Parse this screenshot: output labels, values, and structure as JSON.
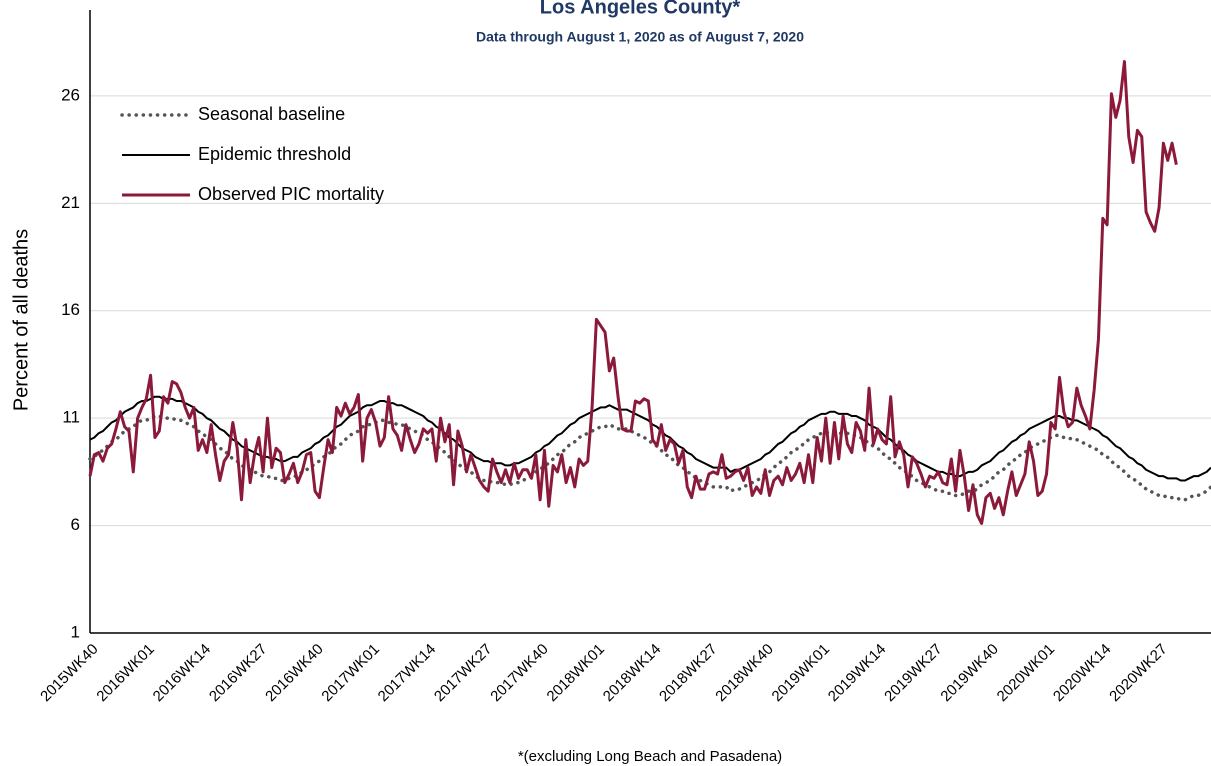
{
  "chart_data": {
    "type": "line",
    "title": "Los Angeles County*",
    "subtitle": "Data through August 1, 2020 as of August 7, 2020",
    "y_label": "Percent of all deaths",
    "footnote": "*(excluding  Long Beach and Pasadena)",
    "ylim": [
      1,
      30
    ],
    "yticks": [
      1,
      6,
      11,
      16,
      21,
      26
    ],
    "grid": true,
    "legend": "top-left",
    "categories": [
      "2015WK40",
      null,
      null,
      null,
      null,
      null,
      null,
      null,
      null,
      null,
      null,
      null,
      null,
      "2016WK01",
      null,
      null,
      null,
      null,
      null,
      null,
      null,
      null,
      null,
      null,
      null,
      null,
      "2016WK14",
      null,
      null,
      null,
      null,
      null,
      null,
      null,
      null,
      null,
      null,
      null,
      null,
      "2016WK27",
      null,
      null,
      null,
      null,
      null,
      null,
      null,
      null,
      null,
      null,
      null,
      null,
      "2016WK40",
      null,
      null,
      null,
      null,
      null,
      null,
      null,
      null,
      null,
      null,
      null,
      null,
      "2017WK01",
      null,
      null,
      null,
      null,
      null,
      null,
      null,
      null,
      null,
      null,
      null,
      null,
      "2017WK14",
      null,
      null,
      null,
      null,
      null,
      null,
      null,
      null,
      null,
      null,
      null,
      null,
      "2017WK27",
      null,
      null,
      null,
      null,
      null,
      null,
      null,
      null,
      null,
      null,
      null,
      null,
      "2017WK40",
      null,
      null,
      null,
      null,
      null,
      null,
      null,
      null,
      null,
      null,
      null,
      null,
      "2018WK01",
      null,
      null,
      null,
      null,
      null,
      null,
      null,
      null,
      null,
      null,
      null,
      null,
      "2018WK14",
      null,
      null,
      null,
      null,
      null,
      null,
      null,
      null,
      null,
      null,
      null,
      null,
      "2018WK27",
      null,
      null,
      null,
      null,
      null,
      null,
      null,
      null,
      null,
      null,
      null,
      null,
      "2018WK40",
      null,
      null,
      null,
      null,
      null,
      null,
      null,
      null,
      null,
      null,
      null,
      null,
      "2019WK01",
      null,
      null,
      null,
      null,
      null,
      null,
      null,
      null,
      null,
      null,
      null,
      null,
      "2019WK14",
      null,
      null,
      null,
      null,
      null,
      null,
      null,
      null,
      null,
      null,
      null,
      null,
      "2019WK27",
      null,
      null,
      null,
      null,
      null,
      null,
      null,
      null,
      null,
      null,
      null,
      null,
      "2019WK40",
      null,
      null,
      null,
      null,
      null,
      null,
      null,
      null,
      null,
      null,
      null,
      null,
      "2020WK01",
      null,
      null,
      null,
      null,
      null,
      null,
      null,
      null,
      null,
      null,
      null,
      null,
      "2020WK14",
      null,
      null,
      null,
      null,
      null,
      null,
      null,
      null,
      null,
      null,
      null,
      null,
      "2020WK27",
      null,
      null,
      null,
      null,
      null,
      null,
      null,
      null,
      null,
      null,
      null,
      null
    ],
    "series": [
      {
        "name": "Seasonal baseline",
        "color": "#555555",
        "line_style": "dotted",
        "values": [
          9.1,
          9.2,
          9.4,
          9.5,
          9.7,
          9.9,
          10.0,
          10.2,
          10.4,
          10.5,
          10.6,
          10.8,
          10.9,
          10.9,
          11.0,
          11.1,
          11.1,
          11.0,
          11.0,
          11.0,
          10.9,
          10.9,
          10.8,
          10.7,
          10.6,
          10.4,
          10.3,
          10.1,
          10.0,
          9.8,
          9.6,
          9.5,
          9.3,
          9.1,
          9.0,
          8.8,
          8.7,
          8.6,
          8.5,
          8.4,
          8.3,
          8.3,
          8.2,
          8.2,
          8.1,
          8.1,
          8.2,
          8.3,
          8.3,
          8.5,
          8.6,
          8.7,
          8.9,
          9.0,
          9.2,
          9.3,
          9.5,
          9.7,
          9.8,
          10.0,
          10.2,
          10.3,
          10.4,
          10.6,
          10.7,
          10.7,
          10.8,
          10.9,
          10.9,
          10.8,
          10.8,
          10.7,
          10.7,
          10.6,
          10.5,
          10.4,
          10.3,
          10.2,
          10.0,
          9.9,
          9.7,
          9.6,
          9.4,
          9.2,
          9.1,
          8.9,
          8.7,
          8.6,
          8.5,
          8.3,
          8.2,
          8.1,
          8.1,
          8.0,
          8.0,
          8.0,
          7.9,
          7.9,
          8.0,
          8.0,
          8.1,
          8.2,
          8.3,
          8.5,
          8.6,
          8.8,
          8.9,
          9.1,
          9.3,
          9.4,
          9.6,
          9.8,
          9.9,
          10.1,
          10.2,
          10.3,
          10.4,
          10.5,
          10.6,
          10.6,
          10.7,
          10.6,
          10.5,
          10.5,
          10.5,
          10.4,
          10.3,
          10.2,
          10.1,
          10.0,
          9.8,
          9.7,
          9.5,
          9.3,
          9.2,
          9.0,
          8.8,
          8.7,
          8.5,
          8.4,
          8.2,
          8.1,
          8.0,
          7.9,
          7.8,
          7.8,
          7.8,
          7.8,
          7.6,
          7.7,
          7.7,
          7.8,
          7.9,
          8.0,
          8.1,
          8.2,
          8.4,
          8.5,
          8.7,
          8.9,
          9.0,
          9.2,
          9.4,
          9.5,
          9.7,
          9.8,
          10.0,
          10.1,
          10.2,
          10.3,
          10.3,
          10.4,
          10.4,
          10.3,
          10.3,
          10.3,
          10.2,
          10.2,
          10.1,
          10.0,
          9.8,
          9.7,
          9.6,
          9.4,
          9.2,
          9.1,
          8.9,
          8.7,
          8.6,
          8.4,
          8.3,
          8.1,
          8.0,
          7.9,
          7.8,
          7.7,
          7.6,
          7.6,
          7.5,
          7.5,
          7.4,
          7.4,
          7.5,
          7.6,
          7.6,
          7.7,
          7.9,
          8.0,
          8.1,
          8.3,
          8.5,
          8.6,
          8.8,
          9.0,
          9.1,
          9.3,
          9.4,
          9.6,
          9.7,
          9.8,
          9.9,
          10.0,
          10.1,
          10.2,
          10.2,
          10.1,
          10.1,
          10.0,
          10.0,
          9.9,
          9.8,
          9.7,
          9.6,
          9.5,
          9.3,
          9.2,
          9.0,
          8.8,
          8.7,
          8.5,
          8.3,
          8.2,
          8.0,
          7.9,
          7.7,
          7.6,
          7.5,
          7.4,
          7.4,
          7.3,
          7.3,
          7.3,
          7.2,
          7.2,
          7.3,
          7.4,
          7.4,
          7.5,
          7.6,
          7.8
        ]
      },
      {
        "name": "Epidemic threshold",
        "color": "#000000",
        "line_style": "solid",
        "values": [
          10.0,
          10.1,
          10.3,
          10.4,
          10.6,
          10.8,
          10.9,
          11.1,
          11.3,
          11.4,
          11.5,
          11.7,
          11.8,
          11.8,
          11.9,
          12.0,
          12.0,
          11.9,
          11.9,
          11.9,
          11.8,
          11.8,
          11.7,
          11.6,
          11.5,
          11.3,
          11.2,
          11.0,
          10.9,
          10.7,
          10.5,
          10.4,
          10.2,
          10.0,
          9.9,
          9.7,
          9.6,
          9.5,
          9.4,
          9.3,
          9.2,
          9.2,
          9.1,
          9.1,
          9.0,
          9.0,
          9.1,
          9.2,
          9.2,
          9.4,
          9.5,
          9.6,
          9.8,
          9.9,
          10.1,
          10.2,
          10.4,
          10.6,
          10.7,
          10.9,
          11.1,
          11.2,
          11.3,
          11.5,
          11.6,
          11.6,
          11.7,
          11.8,
          11.8,
          11.7,
          11.7,
          11.6,
          11.6,
          11.5,
          11.4,
          11.3,
          11.2,
          11.1,
          10.9,
          10.8,
          10.6,
          10.5,
          10.3,
          10.1,
          10.0,
          9.8,
          9.6,
          9.5,
          9.4,
          9.2,
          9.1,
          9.0,
          9.0,
          8.9,
          8.9,
          8.9,
          8.8,
          8.8,
          8.9,
          8.9,
          9.0,
          9.1,
          9.2,
          9.4,
          9.5,
          9.7,
          9.8,
          10.0,
          10.2,
          10.3,
          10.5,
          10.7,
          10.8,
          11.0,
          11.1,
          11.2,
          11.3,
          11.4,
          11.5,
          11.5,
          11.6,
          11.5,
          11.4,
          11.4,
          11.4,
          11.3,
          11.2,
          11.1,
          11.0,
          10.9,
          10.7,
          10.6,
          10.4,
          10.2,
          10.1,
          9.9,
          9.7,
          9.6,
          9.4,
          9.3,
          9.1,
          9.0,
          8.9,
          8.8,
          8.7,
          8.7,
          8.7,
          8.7,
          8.5,
          8.6,
          8.6,
          8.7,
          8.8,
          8.9,
          9.0,
          9.1,
          9.3,
          9.4,
          9.6,
          9.8,
          9.9,
          10.1,
          10.3,
          10.4,
          10.6,
          10.7,
          10.9,
          11.0,
          11.1,
          11.2,
          11.2,
          11.3,
          11.3,
          11.2,
          11.2,
          11.2,
          11.1,
          11.1,
          11.0,
          10.9,
          10.7,
          10.6,
          10.5,
          10.3,
          10.1,
          10.0,
          9.8,
          9.6,
          9.5,
          9.3,
          9.2,
          9.0,
          8.9,
          8.8,
          8.7,
          8.6,
          8.5,
          8.5,
          8.4,
          8.4,
          8.3,
          8.3,
          8.4,
          8.5,
          8.5,
          8.6,
          8.8,
          8.9,
          9.0,
          9.2,
          9.4,
          9.5,
          9.7,
          9.9,
          10.0,
          10.2,
          10.3,
          10.5,
          10.6,
          10.7,
          10.8,
          10.9,
          11.0,
          11.1,
          11.1,
          11.0,
          11.0,
          10.9,
          10.9,
          10.8,
          10.7,
          10.6,
          10.5,
          10.4,
          10.2,
          10.1,
          9.9,
          9.7,
          9.6,
          9.4,
          9.2,
          9.1,
          8.9,
          8.8,
          8.6,
          8.5,
          8.4,
          8.3,
          8.3,
          8.2,
          8.2,
          8.2,
          8.1,
          8.1,
          8.2,
          8.3,
          8.3,
          8.4,
          8.5,
          8.7
        ]
      },
      {
        "name": "Observed PIC mortality",
        "color": "#8B1A3A",
        "line_style": "solid",
        "values": [
          8.3,
          9.3,
          9.4,
          9.0,
          9.6,
          9.8,
          10.5,
          11.3,
          10.6,
          10.4,
          8.5,
          11.0,
          11.5,
          11.9,
          13.0,
          10.1,
          10.4,
          12.0,
          11.7,
          12.7,
          12.6,
          12.2,
          11.5,
          11.0,
          11.5,
          9.5,
          10.0,
          9.4,
          10.7,
          9.3,
          8.1,
          9.0,
          9.3,
          10.8,
          9.6,
          7.2,
          10.0,
          8.0,
          9.3,
          10.1,
          8.5,
          11.0,
          8.7,
          9.6,
          9.4,
          8.0,
          8.4,
          8.9,
          8.0,
          8.5,
          9.3,
          9.4,
          7.6,
          7.3,
          8.7,
          10.0,
          9.4,
          11.5,
          11.1,
          11.7,
          11.2,
          11.5,
          12.1,
          9.0,
          11.0,
          11.4,
          10.8,
          9.7,
          10.1,
          12.0,
          10.5,
          10.2,
          9.5,
          10.7,
          10.0,
          9.4,
          9.8,
          10.5,
          10.3,
          10.5,
          9.0,
          11.0,
          9.9,
          10.7,
          7.9,
          10.4,
          9.7,
          8.5,
          9.3,
          8.7,
          8.1,
          7.8,
          7.6,
          9.1,
          8.5,
          8.0,
          8.6,
          8.0,
          8.9,
          8.2,
          8.6,
          8.6,
          8.2,
          9.3,
          7.2,
          9.5,
          6.9,
          8.8,
          8.5,
          9.3,
          8.0,
          8.7,
          7.8,
          9.1,
          8.8,
          9.0,
          11.5,
          15.6,
          15.3,
          15.0,
          13.2,
          13.8,
          12.0,
          10.5,
          10.4,
          10.4,
          11.8,
          11.7,
          11.9,
          11.8,
          10.0,
          9.7,
          10.7,
          9.5,
          10.0,
          9.8,
          8.9,
          9.5,
          7.8,
          7.3,
          8.3,
          7.7,
          7.7,
          8.4,
          8.5,
          8.4,
          9.3,
          8.2,
          8.3,
          8.5,
          8.6,
          8.1,
          8.7,
          7.4,
          7.8,
          7.5,
          8.6,
          7.4,
          8.1,
          8.3,
          7.9,
          8.7,
          8.1,
          8.4,
          8.9,
          8.0,
          9.3,
          8.0,
          10.1,
          9.0,
          11.0,
          8.9,
          10.8,
          9.1,
          11.1,
          9.8,
          9.4,
          10.8,
          10.4,
          9.5,
          12.4,
          9.8,
          10.5,
          10.0,
          9.8,
          12.0,
          9.2,
          9.9,
          9.3,
          7.8,
          9.2,
          8.9,
          8.4,
          7.8,
          8.3,
          8.2,
          8.5,
          8.0,
          7.9,
          9.1,
          7.6,
          9.5,
          8.3,
          6.7,
          7.9,
          6.5,
          6.1,
          7.3,
          7.5,
          6.8,
          7.3,
          6.5,
          7.6,
          8.5,
          7.4,
          7.9,
          8.4,
          9.9,
          9.0,
          7.4,
          7.6,
          8.4,
          10.8,
          10.5,
          12.9,
          11.3,
          10.6,
          10.8,
          12.4,
          11.6,
          11.1,
          10.5,
          12.3,
          14.7,
          20.3,
          20.0,
          26.1,
          25.0,
          25.8,
          27.6,
          24.1,
          22.9,
          24.4,
          24.1,
          20.6,
          20.1,
          19.7,
          20.8,
          23.8,
          23.0,
          23.8,
          22.8,
          null,
          null,
          null,
          null,
          null,
          null,
          null,
          null
        ]
      }
    ]
  }
}
